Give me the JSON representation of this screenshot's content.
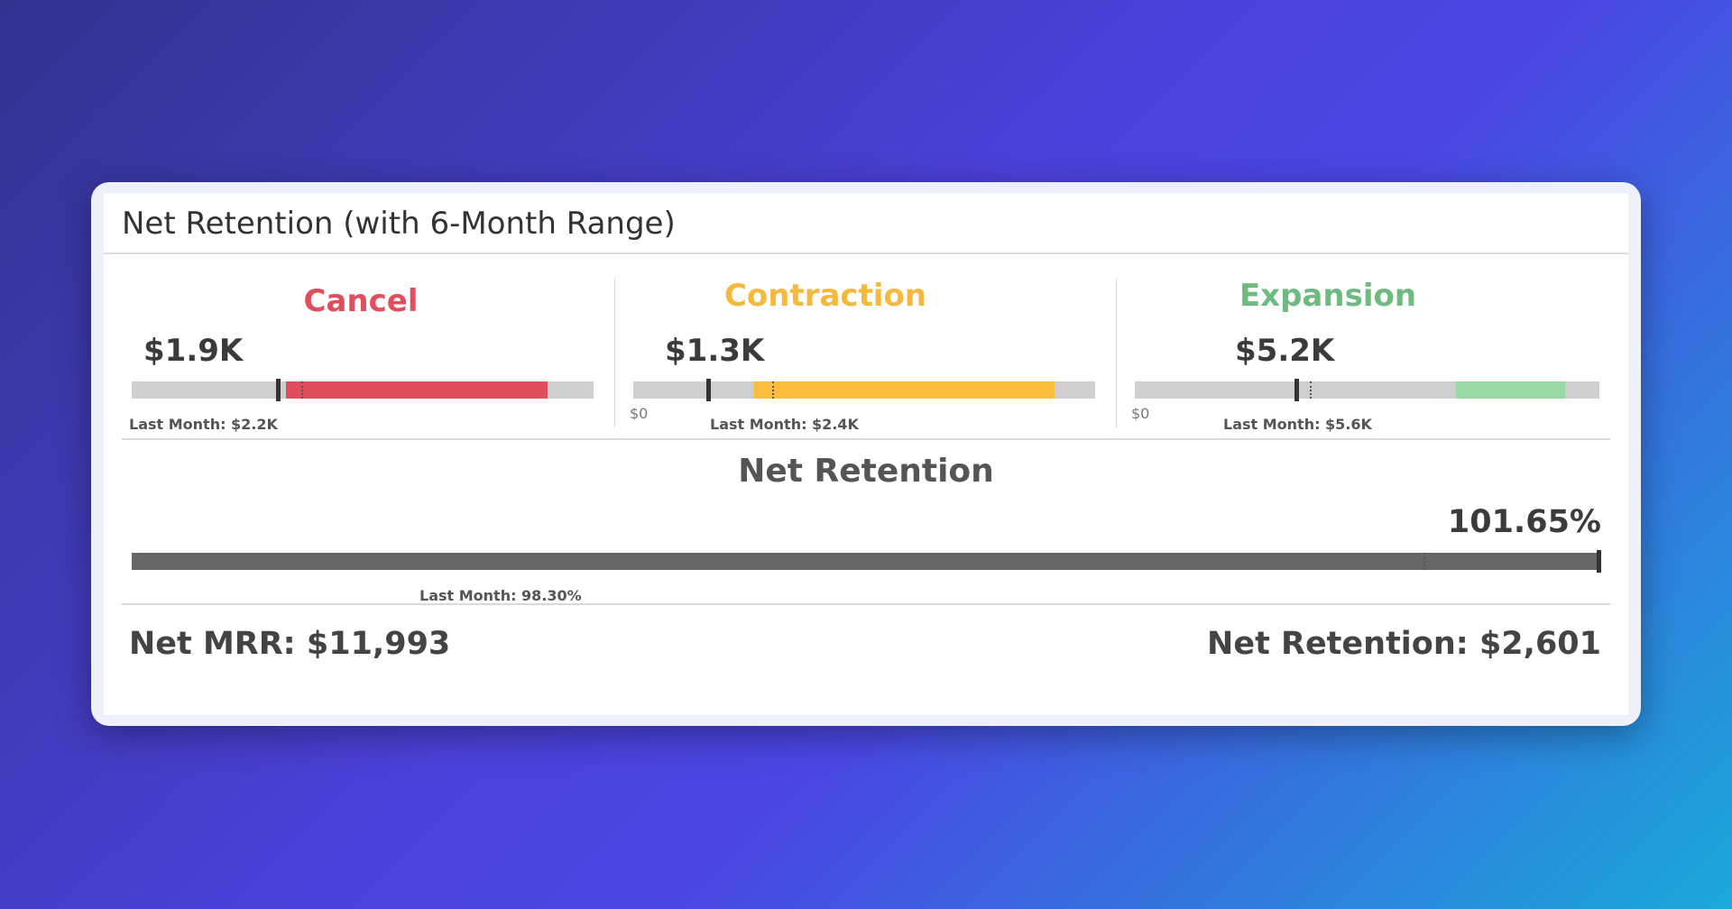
{
  "widget": {
    "title": "Net Retention (with 6-Month Range)"
  },
  "chart_data": [
    {
      "type": "bullet",
      "title": "Cancel",
      "value_label": "$1.9K",
      "value": 1.9,
      "last_month": 2.2,
      "last_month_label": "Last Month: $2.2K",
      "range_6_month": [
        2.0,
        5.4
      ],
      "axis_max": 6.0,
      "axis_min_label": "",
      "color": "#e04d5c"
    },
    {
      "type": "bullet",
      "title": "Contraction",
      "value_label": "$1.3K",
      "value": 1.3,
      "last_month": 2.4,
      "last_month_label": "Last Month: $2.4K",
      "range_6_month": [
        2.1,
        7.3
      ],
      "axis_max": 8.0,
      "axis_min_label": "$0",
      "color": "#fbbd3e"
    },
    {
      "type": "bullet",
      "title": "Expansion",
      "value_label": "$5.2K",
      "value": 5.2,
      "last_month": 5.6,
      "last_month_label": "Last Month: $5.6K",
      "range_6_month": [
        10.3,
        13.8
      ],
      "axis_max": 14.9,
      "axis_min_label": "$0",
      "color": "#97d8a3"
    },
    {
      "type": "bullet",
      "title": "Net Retention",
      "value_label": "101.65%",
      "value": 101.65,
      "last_month": 98.3,
      "last_month_label": "Last Month: 98.30%",
      "range_6_month": [
        73.5,
        101.65
      ],
      "axis_min": 73.5,
      "axis_max": 101.65,
      "color": "#666666"
    }
  ],
  "footer": {
    "net_mrr": "Net MRR: $11,993",
    "net_retention": "Net Retention: $2,601"
  }
}
